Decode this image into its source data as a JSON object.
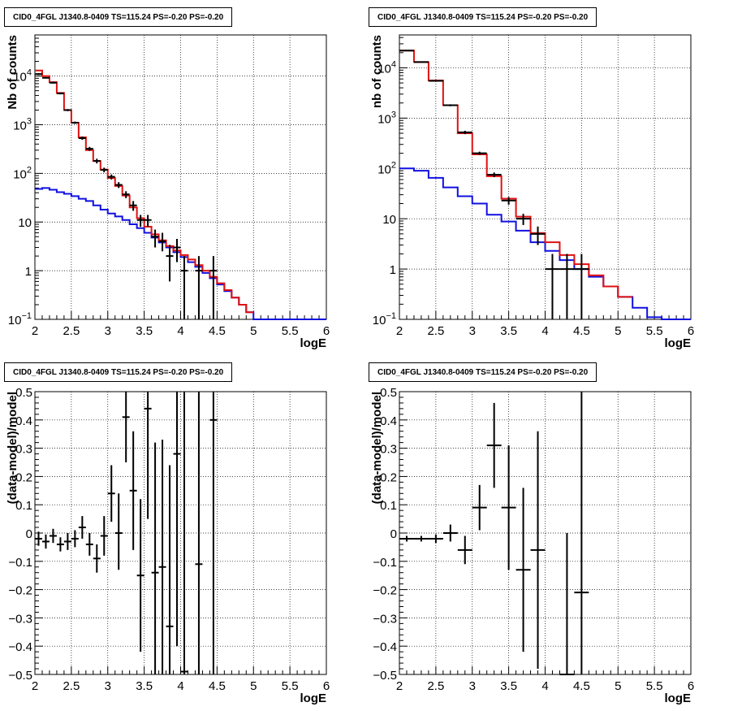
{
  "chart_data": [
    {
      "type": "histogram",
      "title": "CID0_4FGL J1340.8-0409 TS=115.24 PS=-0.20 PS=-0.20",
      "xlabel": "logE",
      "ylabel": "Nb of counts",
      "log_y": true,
      "xlim": [
        2,
        6
      ],
      "ylim": [
        0.1,
        70000
      ],
      "grid": true,
      "x_ticks": [
        "2",
        "2.5",
        "3",
        "3.5",
        "4",
        "4.5",
        "5",
        "5.5",
        "6"
      ],
      "y_ticks": [
        {
          "v": 0.1,
          "base": "10",
          "exp": "−1"
        },
        {
          "v": 1,
          "base": "1",
          "exp": ""
        },
        {
          "v": 10,
          "base": "10",
          "exp": ""
        },
        {
          "v": 100,
          "base": "10",
          "exp": "2"
        },
        {
          "v": 1000,
          "base": "10",
          "exp": "3"
        },
        {
          "v": 10000,
          "base": "10",
          "exp": "4"
        }
      ],
      "bin_edges": [
        2.0,
        2.1,
        2.2,
        2.3,
        2.4,
        2.5,
        2.6,
        2.7,
        2.8,
        2.9,
        3.0,
        3.1,
        3.2,
        3.3,
        3.4,
        3.5,
        3.6,
        3.7,
        3.8,
        3.9,
        4.0,
        4.1,
        4.2,
        4.3,
        4.4,
        4.5,
        4.6,
        4.7,
        4.8,
        4.9,
        5.0,
        5.1,
        5.2,
        5.3,
        5.4,
        5.5,
        5.6,
        5.7,
        5.8,
        5.9,
        6.0
      ],
      "series": [
        {
          "color": "#1010e0",
          "values": [
            48,
            50,
            46,
            41,
            38,
            34,
            30,
            27,
            22,
            18,
            15,
            13,
            11,
            9,
            7.5,
            6,
            4.8,
            3.8,
            3.0,
            2.4,
            1.9,
            1.5,
            1.2,
            0.9,
            0.7,
            0.52,
            0.38,
            0.28,
            0.2,
            0.14,
            0.1,
            0.1,
            0.1,
            0.1,
            0.1,
            0.1,
            0.1,
            0.1,
            0.1,
            0.1
          ]
        },
        {
          "color": "#e01010",
          "values": [
            13000,
            10000,
            7500,
            4500,
            2000,
            1100,
            550,
            300,
            180,
            120,
            80,
            55,
            35,
            20,
            12,
            8,
            5.6,
            4.2,
            3.2,
            2.6,
            2.1,
            1.7,
            1.3,
            1.0,
            0.75,
            0.55,
            0.4,
            0.28,
            0.2,
            0.14
          ]
        }
      ],
      "points": [
        {
          "x": 2.05,
          "y": 11000,
          "lo": 10500,
          "hi": 11500
        },
        {
          "x": 2.15,
          "y": 9200,
          "lo": 8900,
          "hi": 9500
        },
        {
          "x": 2.25,
          "y": 7300,
          "lo": 7000,
          "hi": 7600
        },
        {
          "x": 2.35,
          "y": 4400,
          "lo": 4200,
          "hi": 4600
        },
        {
          "x": 2.45,
          "y": 2000,
          "lo": 1900,
          "hi": 2100
        },
        {
          "x": 2.55,
          "y": 1100,
          "lo": 1040,
          "hi": 1160
        },
        {
          "x": 2.65,
          "y": 530,
          "lo": 490,
          "hi": 570
        },
        {
          "x": 2.75,
          "y": 320,
          "lo": 290,
          "hi": 350
        },
        {
          "x": 2.85,
          "y": 180,
          "lo": 160,
          "hi": 200
        },
        {
          "x": 2.95,
          "y": 118,
          "lo": 105,
          "hi": 131
        },
        {
          "x": 3.05,
          "y": 85,
          "lo": 75,
          "hi": 95
        },
        {
          "x": 3.15,
          "y": 58,
          "lo": 50,
          "hi": 66
        },
        {
          "x": 3.25,
          "y": 37,
          "lo": 31,
          "hi": 43
        },
        {
          "x": 3.35,
          "y": 22,
          "lo": 17,
          "hi": 27
        },
        {
          "x": 3.45,
          "y": 11,
          "lo": 8,
          "hi": 14
        },
        {
          "x": 3.55,
          "y": 11,
          "lo": 8,
          "hi": 14
        },
        {
          "x": 3.65,
          "y": 5,
          "lo": 3,
          "hi": 7
        },
        {
          "x": 3.75,
          "y": 4,
          "lo": 2.5,
          "hi": 6
        },
        {
          "x": 3.85,
          "y": 2,
          "lo": 0.6,
          "hi": 3.4
        },
        {
          "x": 3.95,
          "y": 3,
          "lo": 1.5,
          "hi": 4.5
        },
        {
          "x": 4.05,
          "y": 1,
          "lo": 0.08,
          "hi": 2
        },
        {
          "x": 4.25,
          "y": 1,
          "lo": 0.08,
          "hi": 2
        },
        {
          "x": 4.45,
          "y": 1,
          "lo": 0.08,
          "hi": 2
        }
      ]
    },
    {
      "type": "histogram",
      "title": "CID0_4FGL J1340.8-0409 TS=115.24 PS=-0.20 PS=-0.20",
      "xlabel": "logE",
      "ylabel": "nb of counts",
      "log_y": true,
      "xlim": [
        2,
        6
      ],
      "ylim": [
        0.1,
        45000
      ],
      "grid": true,
      "x_ticks": [
        "2",
        "2.5",
        "3",
        "3.5",
        "4",
        "4.5",
        "5",
        "5.5",
        "6"
      ],
      "y_ticks": [
        {
          "v": 0.1,
          "base": "10",
          "exp": "−1"
        },
        {
          "v": 1,
          "base": "1",
          "exp": ""
        },
        {
          "v": 10,
          "base": "10",
          "exp": ""
        },
        {
          "v": 100,
          "base": "10",
          "exp": "2"
        },
        {
          "v": 1000,
          "base": "10",
          "exp": "3"
        },
        {
          "v": 10000,
          "base": "10",
          "exp": "4"
        }
      ],
      "bin_edges": [
        2.0,
        2.2,
        2.4,
        2.6,
        2.8,
        3.0,
        3.2,
        3.4,
        3.6,
        3.8,
        4.0,
        4.2,
        4.4,
        4.6,
        4.8,
        5.0,
        5.2,
        5.4,
        5.6,
        5.8,
        6.0
      ],
      "series": [
        {
          "color": "#1010e0",
          "values": [
            100,
            90,
            65,
            42,
            28,
            20,
            12,
            8.8,
            5.8,
            3.4,
            2.3,
            1.5,
            1.0,
            0.7,
            0.45,
            0.28,
            0.17,
            0.11,
            0.1,
            0.1
          ]
        },
        {
          "color": "#e01010",
          "values": [
            22000,
            13000,
            5600,
            1800,
            500,
            190,
            70,
            25,
            11,
            5.2,
            3.4,
            1.9,
            1.25,
            0.75,
            0.45,
            0.28
          ]
        }
      ],
      "points": [
        {
          "x": 2.1,
          "y": 22000,
          "lo": 21500,
          "hi": 22500
        },
        {
          "x": 2.3,
          "y": 13000,
          "lo": 12700,
          "hi": 13300
        },
        {
          "x": 2.5,
          "y": 5500,
          "lo": 5300,
          "hi": 5700
        },
        {
          "x": 2.7,
          "y": 1800,
          "lo": 1720,
          "hi": 1880
        },
        {
          "x": 2.9,
          "y": 520,
          "lo": 480,
          "hi": 560
        },
        {
          "x": 3.1,
          "y": 200,
          "lo": 185,
          "hi": 215
        },
        {
          "x": 3.3,
          "y": 75,
          "lo": 67,
          "hi": 83
        },
        {
          "x": 3.5,
          "y": 23,
          "lo": 19,
          "hi": 27
        },
        {
          "x": 3.7,
          "y": 10,
          "lo": 7.5,
          "hi": 12.5
        },
        {
          "x": 3.9,
          "y": 5,
          "lo": 3,
          "hi": 7
        },
        {
          "x": 4.1,
          "y": 1,
          "lo": 0.08,
          "hi": 2
        },
        {
          "x": 4.3,
          "y": 1,
          "lo": 0.08,
          "hi": 2
        },
        {
          "x": 4.5,
          "y": 1,
          "lo": 0.08,
          "hi": 2
        }
      ]
    },
    {
      "type": "scatter",
      "title": "CID0_4FGL J1340.8-0409 TS=115.24 PS=-0.20 PS=-0.20",
      "xlabel": "logE",
      "ylabel": "(data-model)/model",
      "xlim": [
        2,
        6
      ],
      "ylim": [
        -0.5,
        0.5
      ],
      "grid": true,
      "x_ticks": [
        "2",
        "2.5",
        "3",
        "3.5",
        "4",
        "4.5",
        "5",
        "5.5",
        "6"
      ],
      "y_ticks": [
        "−0.5",
        "−0.4",
        "−0.3",
        "−0.2",
        "−0.1",
        "0",
        "0.1",
        "0.2",
        "0.3",
        "0.4",
        "0.5"
      ],
      "bin_half_width": 0.05,
      "points": [
        {
          "x": 2.05,
          "y": -0.02,
          "lo": -0.045,
          "hi": 0.005
        },
        {
          "x": 2.15,
          "y": -0.03,
          "lo": -0.055,
          "hi": -0.005
        },
        {
          "x": 2.25,
          "y": -0.01,
          "lo": -0.035,
          "hi": 0.015
        },
        {
          "x": 2.35,
          "y": -0.04,
          "lo": -0.065,
          "hi": -0.015
        },
        {
          "x": 2.45,
          "y": -0.03,
          "lo": -0.06,
          "hi": 0.0
        },
        {
          "x": 2.55,
          "y": -0.02,
          "lo": -0.05,
          "hi": 0.01
        },
        {
          "x": 2.65,
          "y": 0.02,
          "lo": -0.02,
          "hi": 0.06
        },
        {
          "x": 2.75,
          "y": -0.04,
          "lo": -0.08,
          "hi": 0.0
        },
        {
          "x": 2.85,
          "y": -0.09,
          "lo": -0.14,
          "hi": -0.04
        },
        {
          "x": 2.95,
          "y": -0.01,
          "lo": -0.08,
          "hi": 0.06
        },
        {
          "x": 3.05,
          "y": 0.14,
          "lo": 0.04,
          "hi": 0.24
        },
        {
          "x": 3.15,
          "y": 0.0,
          "lo": -0.13,
          "hi": 0.14
        },
        {
          "x": 3.25,
          "y": 0.41,
          "lo": 0.25,
          "hi": 0.57
        },
        {
          "x": 3.35,
          "y": 0.15,
          "lo": -0.06,
          "hi": 0.36
        },
        {
          "x": 3.45,
          "y": -0.15,
          "lo": -0.42,
          "hi": 0.12
        },
        {
          "x": 3.55,
          "y": 0.44,
          "lo": 0.05,
          "hi": 0.83
        },
        {
          "x": 3.65,
          "y": -0.14,
          "lo": -0.6,
          "hi": 0.32
        },
        {
          "x": 3.75,
          "y": -0.12,
          "lo": -0.57,
          "hi": 0.33
        },
        {
          "x": 3.85,
          "y": -0.33,
          "lo": -0.9,
          "hi": 0.24
        },
        {
          "x": 3.95,
          "y": 0.28,
          "lo": -0.4,
          "hi": 0.96
        },
        {
          "x": 4.05,
          "y": -0.49,
          "lo": -1.5,
          "hi": 0.52
        },
        {
          "x": 4.25,
          "y": -0.11,
          "lo": -1.1,
          "hi": 0.9
        },
        {
          "x": 4.45,
          "y": 0.4,
          "lo": -0.6,
          "hi": 1.4
        }
      ]
    },
    {
      "type": "scatter",
      "title": "CID0_4FGL J1340.8-0409 TS=115.24 PS=-0.20 PS=-0.20",
      "xlabel": "logE",
      "ylabel": "(data-model)/model",
      "xlim": [
        2,
        6
      ],
      "ylim": [
        -0.5,
        0.5
      ],
      "grid": true,
      "x_ticks": [
        "2",
        "2.5",
        "3",
        "3.5",
        "4",
        "4.5",
        "5",
        "5.5",
        "6"
      ],
      "y_ticks": [
        "−0.5",
        "−0.4",
        "−0.3",
        "−0.2",
        "−0.1",
        "0",
        "0.1",
        "0.2",
        "0.3",
        "0.4",
        "0.5"
      ],
      "bin_half_width": 0.1,
      "points": [
        {
          "x": 2.1,
          "y": -0.02,
          "lo": -0.03,
          "hi": -0.01
        },
        {
          "x": 2.3,
          "y": -0.02,
          "lo": -0.03,
          "hi": -0.01
        },
        {
          "x": 2.5,
          "y": -0.02,
          "lo": -0.035,
          "hi": -0.005
        },
        {
          "x": 2.7,
          "y": 0.0,
          "lo": -0.03,
          "hi": 0.03
        },
        {
          "x": 2.9,
          "y": -0.06,
          "lo": -0.11,
          "hi": -0.01
        },
        {
          "x": 3.1,
          "y": 0.09,
          "lo": 0.01,
          "hi": 0.17
        },
        {
          "x": 3.3,
          "y": 0.31,
          "lo": 0.16,
          "hi": 0.46
        },
        {
          "x": 3.5,
          "y": 0.09,
          "lo": -0.13,
          "hi": 0.31
        },
        {
          "x": 3.7,
          "y": -0.13,
          "lo": -0.42,
          "hi": 0.16
        },
        {
          "x": 3.9,
          "y": -0.06,
          "lo": -0.48,
          "hi": 0.36
        },
        {
          "x": 4.3,
          "y": -0.5,
          "lo": -1.5,
          "hi": 0.0
        },
        {
          "x": 4.5,
          "y": -0.21,
          "lo": -1.21,
          "hi": 0.79
        }
      ]
    }
  ]
}
